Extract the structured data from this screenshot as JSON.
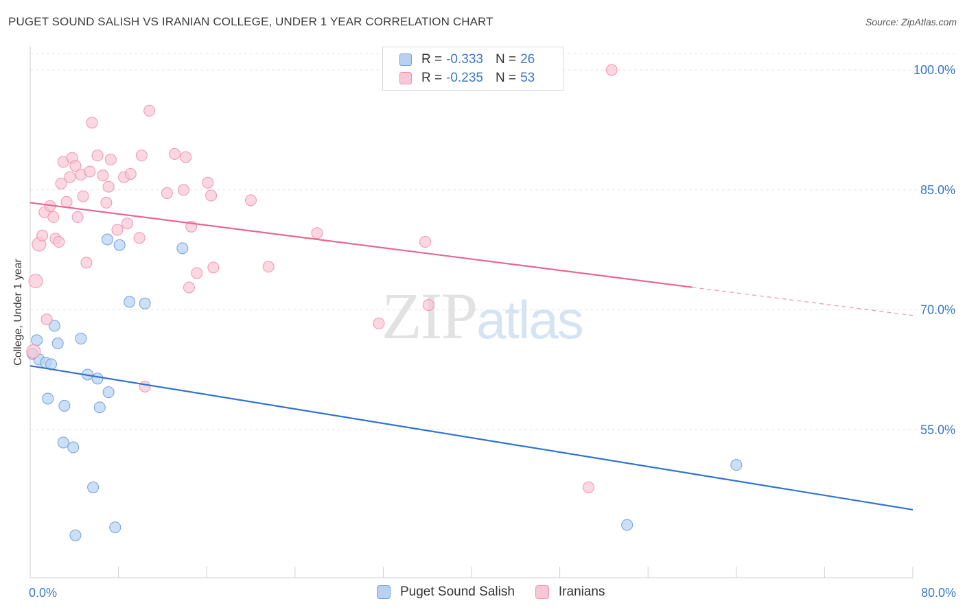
{
  "title": "PUGET SOUND SALISH VS IRANIAN COLLEGE, UNDER 1 YEAR CORRELATION CHART",
  "source": "Source: ZipAtlas.com",
  "watermark": {
    "zip": "ZIP",
    "atlas": "atlas"
  },
  "legend": {
    "rows": [
      {
        "r_label": "R =",
        "r_value": "-0.333",
        "n_label": "N =",
        "n_value": "26"
      },
      {
        "r_label": "R =",
        "r_value": "-0.235",
        "n_label": "N =",
        "n_value": "53"
      }
    ]
  },
  "bottom_legend": [
    "Puget Sound Salish",
    "Iranians"
  ],
  "colors": {
    "blue_fill": "#b8d1f2",
    "blue_stroke": "#6fa0de",
    "blue_line": "#2f72d0",
    "pink_fill": "#f9c6d5",
    "pink_stroke": "#ef94ae",
    "pink_line": "#e8668f",
    "tick_label": "#3b78c9",
    "grid": "#e3e3e3"
  },
  "chart_data": {
    "type": "scatter",
    "title": "PUGET SOUND SALISH VS IRANIAN COLLEGE, UNDER 1 YEAR CORRELATION CHART",
    "xlabel": "",
    "ylabel": "College, Under 1 year",
    "xlim": [
      0,
      80
    ],
    "ylim": [
      36.5,
      103
    ],
    "x_tick_labels": [
      {
        "value": 0,
        "label": "0.0%"
      },
      {
        "value": 80,
        "label": "80.0%"
      }
    ],
    "y_tick_labels": [
      {
        "value": 100,
        "label": "100.0%"
      },
      {
        "value": 85,
        "label": "85.0%"
      },
      {
        "value": 70,
        "label": "70.0%"
      },
      {
        "value": 55,
        "label": "55.0%"
      }
    ],
    "series": [
      {
        "name": "Puget Sound Salish",
        "color": "blue",
        "points": [
          [
            0.6,
            66.2
          ],
          [
            0.8,
            63.8
          ],
          [
            1.4,
            63.4
          ],
          [
            1.6,
            58.9
          ],
          [
            1.9,
            63.2
          ],
          [
            2.2,
            68.0
          ],
          [
            2.5,
            65.8
          ],
          [
            3.1,
            58.0
          ],
          [
            3.0,
            53.4
          ],
          [
            3.9,
            52.8
          ],
          [
            4.6,
            66.4
          ],
          [
            5.2,
            61.9
          ],
          [
            6.1,
            61.4
          ],
          [
            6.3,
            57.8
          ],
          [
            5.7,
            47.8
          ],
          [
            4.1,
            41.8
          ],
          [
            7.1,
            59.7
          ],
          [
            7.7,
            42.8
          ],
          [
            7.0,
            78.8
          ],
          [
            8.1,
            78.1
          ],
          [
            9.0,
            71.0
          ],
          [
            10.4,
            70.8
          ],
          [
            13.8,
            77.7
          ],
          [
            54.1,
            43.1
          ],
          [
            64.0,
            50.6
          ],
          [
            0.2,
            64.5
          ]
        ],
        "trend": {
          "x": [
            0,
            80
          ],
          "y": [
            63.0,
            45.0
          ],
          "solid_until": 80
        }
      },
      {
        "name": "Iranians",
        "color": "pink",
        "points": [
          [
            0.3,
            64.8
          ],
          [
            0.5,
            73.6
          ],
          [
            0.8,
            78.2
          ],
          [
            1.1,
            79.3
          ],
          [
            1.3,
            82.2
          ],
          [
            1.5,
            68.8
          ],
          [
            1.8,
            83.0
          ],
          [
            2.1,
            81.6
          ],
          [
            2.3,
            78.9
          ],
          [
            2.6,
            78.5
          ],
          [
            2.8,
            85.8
          ],
          [
            3.0,
            88.5
          ],
          [
            3.3,
            83.5
          ],
          [
            3.6,
            86.6
          ],
          [
            3.8,
            89.0
          ],
          [
            4.1,
            88.0
          ],
          [
            4.3,
            81.6
          ],
          [
            4.6,
            86.9
          ],
          [
            4.8,
            84.2
          ],
          [
            5.1,
            75.9
          ],
          [
            5.4,
            87.3
          ],
          [
            5.6,
            93.4
          ],
          [
            6.1,
            89.3
          ],
          [
            6.6,
            86.8
          ],
          [
            6.9,
            83.4
          ],
          [
            7.1,
            85.4
          ],
          [
            7.3,
            88.8
          ],
          [
            7.9,
            80.0
          ],
          [
            8.5,
            86.6
          ],
          [
            8.8,
            80.8
          ],
          [
            9.1,
            87.0
          ],
          [
            9.9,
            79.0
          ],
          [
            10.1,
            89.3
          ],
          [
            10.4,
            60.4
          ],
          [
            10.8,
            94.9
          ],
          [
            12.4,
            84.6
          ],
          [
            13.1,
            89.5
          ],
          [
            13.9,
            85.0
          ],
          [
            14.1,
            89.1
          ],
          [
            14.4,
            72.8
          ],
          [
            14.6,
            80.4
          ],
          [
            15.1,
            74.6
          ],
          [
            16.1,
            85.9
          ],
          [
            16.4,
            84.3
          ],
          [
            16.6,
            75.3
          ],
          [
            20.0,
            83.7
          ],
          [
            21.6,
            75.4
          ],
          [
            26.0,
            79.6
          ],
          [
            31.6,
            68.3
          ],
          [
            35.8,
            78.5
          ],
          [
            36.1,
            70.6
          ],
          [
            50.6,
            47.8
          ],
          [
            52.7,
            100.0
          ]
        ],
        "trend": {
          "x": [
            0,
            80
          ],
          "y": [
            83.4,
            69.3
          ],
          "solid_until": 60
        }
      }
    ]
  }
}
